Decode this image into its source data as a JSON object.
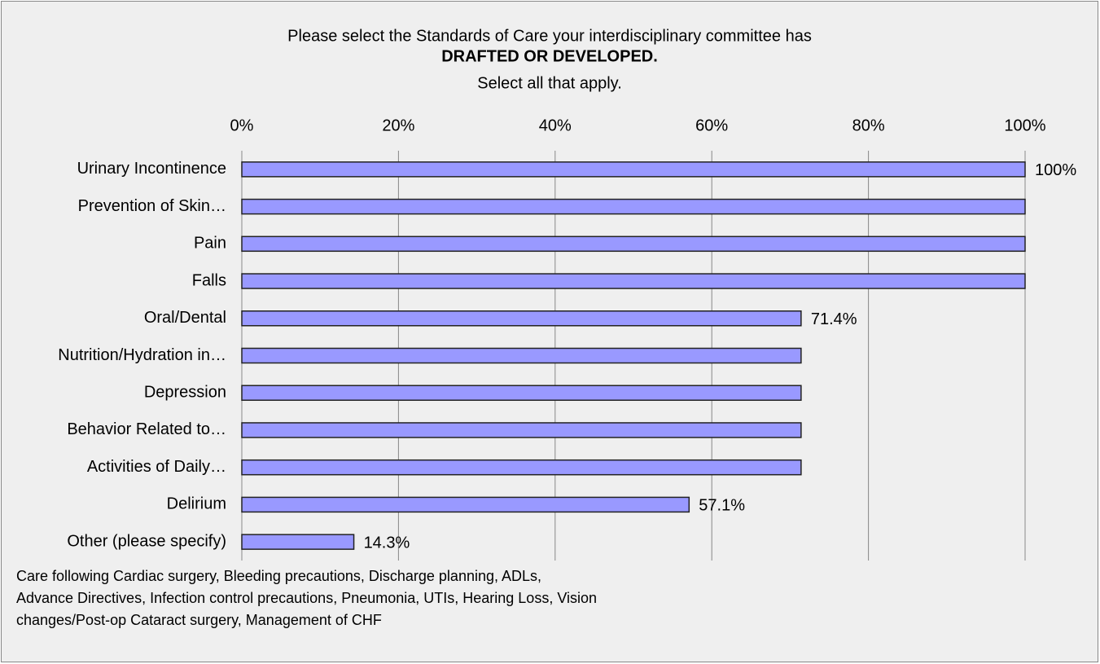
{
  "chart_data": {
    "type": "hbar",
    "title_lines": [
      "Please select the Standards of Care your interdisciplinary committee has",
      "DRAFTED OR DEVELOPED.",
      "Select all that apply."
    ],
    "categories": [
      "Urinary Incontinence",
      "Prevention of Skin…",
      "Pain",
      "Falls",
      "Oral/Dental",
      "Nutrition/Hydration in…",
      "Depression",
      "Behavior Related to…",
      "Activities of Daily…",
      "Delirium",
      "Other (please specify)"
    ],
    "values": [
      100,
      100,
      100,
      100,
      71.4,
      71.4,
      71.4,
      71.4,
      71.4,
      57.1,
      14.3
    ],
    "value_labels": [
      "100%",
      null,
      null,
      null,
      "71.4%",
      null,
      null,
      null,
      null,
      "57.1%",
      "14.3%"
    ],
    "color": "#9999ff",
    "xlim": [
      0,
      100
    ],
    "xticks": [
      {
        "value": 0,
        "label": "0%"
      },
      {
        "value": 20,
        "label": "20%"
      },
      {
        "value": 40,
        "label": "40%"
      },
      {
        "value": 60,
        "label": "60%"
      },
      {
        "value": 80,
        "label": "80%"
      },
      {
        "value": 100,
        "label": "100%"
      }
    ],
    "grid": true,
    "annotation_lines": [
      "Care following Cardiac surgery, Bleeding precautions, Discharge planning, ADLs,",
      "Advance Directives, Infection control precautions, Pneumonia, UTIs, Hearing Loss, Vision",
      "changes/Post-op Cataract surgery, Management of CHF"
    ]
  }
}
